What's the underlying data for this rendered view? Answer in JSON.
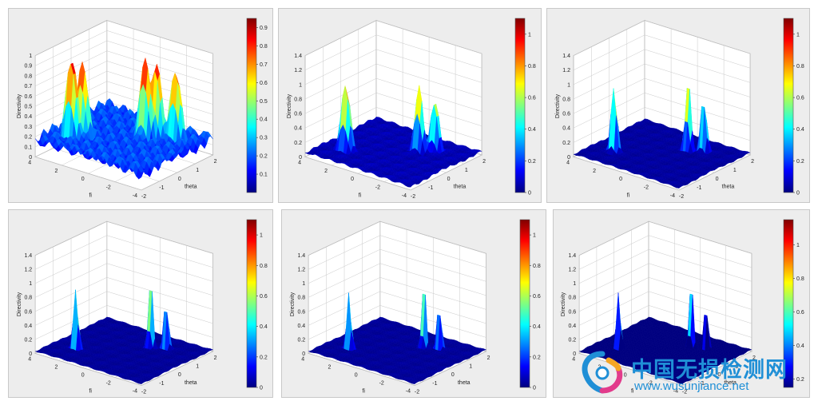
{
  "watermark": {
    "title": "中国无损检测网",
    "url": "www.wusunjiance.net"
  },
  "chart_data": [
    {
      "type": "surface",
      "xlabel": "theta",
      "ylabel": "fi",
      "zlabel": "Directivity",
      "xlim": [
        -2,
        2
      ],
      "ylim": [
        -4,
        4
      ],
      "zlim": [
        0,
        1
      ],
      "xticks": [
        "-2",
        "-1",
        "0",
        "1",
        "2"
      ],
      "yticks": [
        "-4",
        "-2",
        "0",
        "2",
        "4"
      ],
      "zticks": [
        "0",
        "0.1",
        "0.2",
        "0.3",
        "0.4",
        "0.5",
        "0.6",
        "0.7",
        "0.8",
        "0.9",
        "1"
      ],
      "colorbar": {
        "min": 0,
        "max": 0.95,
        "ticks": [
          "0.1",
          "0.2",
          "0.3",
          "0.4",
          "0.5",
          "0.6",
          "0.7",
          "0.8",
          "0.9"
        ]
      },
      "peaks": [
        {
          "theta": -1.0,
          "fi": 2.6,
          "z": 0.95,
          "w": 0.3
        },
        {
          "theta": -0.7,
          "fi": 2.2,
          "z": 0.9,
          "w": 0.3
        },
        {
          "theta": 0.6,
          "fi": -0.8,
          "z": 0.95,
          "w": 0.3
        },
        {
          "theta": 0.9,
          "fi": -1.2,
          "z": 0.9,
          "w": 0.3
        },
        {
          "theta": 1.1,
          "fi": -2.4,
          "z": 0.85,
          "w": 0.3
        }
      ],
      "floor": 0.25
    },
    {
      "type": "surface",
      "xlabel": "theta",
      "ylabel": "fi",
      "zlabel": "Directivity",
      "xlim": [
        -2,
        2
      ],
      "ylim": [
        -4,
        4
      ],
      "zlim": [
        0,
        1.4
      ],
      "xticks": [
        "-2",
        "-1",
        "0",
        "1",
        "2"
      ],
      "yticks": [
        "-4",
        "-2",
        "0",
        "2",
        "4"
      ],
      "zticks": [
        "0",
        "0.2",
        "0.4",
        "0.6",
        "0.8",
        "1",
        "1.2",
        "1.4"
      ],
      "colorbar": {
        "min": 0,
        "max": 1.1,
        "ticks": [
          "0",
          "0.2",
          "0.4",
          "0.6",
          "0.8",
          "1"
        ]
      },
      "peaks": [
        {
          "theta": -0.9,
          "fi": 2.4,
          "z": 1.0,
          "w": 0.22
        },
        {
          "theta": 0.7,
          "fi": -1.0,
          "z": 0.95,
          "w": 0.2
        },
        {
          "theta": 1.0,
          "fi": -1.8,
          "z": 0.8,
          "w": 0.2
        }
      ],
      "floor": 0.08
    },
    {
      "type": "surface",
      "xlabel": "theta",
      "ylabel": "fi",
      "zlabel": "Directivity",
      "xlim": [
        -2,
        2
      ],
      "ylim": [
        -4,
        4
      ],
      "zlim": [
        0,
        1.4
      ],
      "xticks": [
        "-2",
        "-1",
        "0",
        "1",
        "2"
      ],
      "yticks": [
        "-4",
        "-2",
        "0",
        "2",
        "4"
      ],
      "zticks": [
        "0",
        "0.2",
        "0.4",
        "0.6",
        "0.8",
        "1",
        "1.2",
        "1.4"
      ],
      "colorbar": {
        "min": 0,
        "max": 1.1,
        "ticks": [
          "0",
          "0.2",
          "0.4",
          "0.6",
          "0.8",
          "1"
        ]
      },
      "peaks": [
        {
          "theta": -0.9,
          "fi": 2.4,
          "z": 1.05,
          "w": 0.14
        },
        {
          "theta": 0.8,
          "fi": -0.9,
          "z": 1.05,
          "w": 0.14
        },
        {
          "theta": 1.1,
          "fi": -1.7,
          "z": 0.85,
          "w": 0.14
        }
      ],
      "floor": 0.05
    },
    {
      "type": "surface",
      "xlabel": "theta",
      "ylabel": "fi",
      "zlabel": "Directivity",
      "xlim": [
        -2,
        2
      ],
      "ylim": [
        -4,
        4
      ],
      "zlim": [
        0,
        1.4
      ],
      "xticks": [
        "-2",
        "-1",
        "0",
        "1",
        "2"
      ],
      "yticks": [
        "-4",
        "-2",
        "0",
        "2",
        "4"
      ],
      "zticks": [
        "0",
        "0.2",
        "0.4",
        "0.6",
        "0.8",
        "1",
        "1.2",
        "1.4"
      ],
      "colorbar": {
        "min": 0,
        "max": 1.1,
        "ticks": [
          "0",
          "0.2",
          "0.4",
          "0.6",
          "0.8",
          "1"
        ]
      },
      "peaks": [
        {
          "theta": -0.9,
          "fi": 2.4,
          "z": 1.1,
          "w": 0.11
        },
        {
          "theta": 0.8,
          "fi": -0.9,
          "z": 1.1,
          "w": 0.11
        },
        {
          "theta": 1.1,
          "fi": -1.7,
          "z": 0.85,
          "w": 0.11
        }
      ],
      "floor": 0.04
    },
    {
      "type": "surface",
      "xlabel": "theta",
      "ylabel": "fi",
      "zlabel": "Directivity",
      "xlim": [
        -2,
        2
      ],
      "ylim": [
        -4,
        4
      ],
      "zlim": [
        0,
        1.4
      ],
      "xticks": [
        "-2",
        "-1",
        "0",
        "1",
        "2"
      ],
      "yticks": [
        "-4",
        "-2",
        "0",
        "2",
        "4"
      ],
      "zticks": [
        "0",
        "0.2",
        "0.4",
        "0.6",
        "0.8",
        "1",
        "1.2",
        "1.4"
      ],
      "colorbar": {
        "min": 0,
        "max": 1.1,
        "ticks": [
          "0",
          "0.2",
          "0.4",
          "0.6",
          "0.8",
          "1"
        ]
      },
      "peaks": [
        {
          "theta": -0.9,
          "fi": 2.4,
          "z": 1.1,
          "w": 0.1
        },
        {
          "theta": 0.8,
          "fi": -0.9,
          "z": 1.1,
          "w": 0.1
        },
        {
          "theta": 1.1,
          "fi": -1.7,
          "z": 0.85,
          "w": 0.1
        }
      ],
      "floor": 0.04
    },
    {
      "type": "surface",
      "xlabel": "theta",
      "ylabel": "fi",
      "zlabel": "Directivity",
      "xlim": [
        -2,
        2
      ],
      "ylim": [
        -4,
        4
      ],
      "zlim": [
        0,
        1.4
      ],
      "xticks": [
        "-2",
        "-1",
        "0",
        "1",
        "2"
      ],
      "yticks": [
        "-4",
        "-2",
        "0",
        "2",
        "4"
      ],
      "zticks": [
        "0",
        "0.2",
        "0.4",
        "0.6",
        "0.8",
        "1",
        "1.2",
        "1.4"
      ],
      "colorbar": {
        "min": 0.15,
        "max": 1.15,
        "ticks": [
          "0.2",
          "0.4",
          "0.6",
          "0.8",
          "1"
        ]
      },
      "peaks": [
        {
          "theta": -0.9,
          "fi": 2.4,
          "z": 1.1,
          "w": 0.1
        },
        {
          "theta": 0.8,
          "fi": -0.9,
          "z": 1.1,
          "w": 0.1
        },
        {
          "theta": 1.1,
          "fi": -1.7,
          "z": 0.85,
          "w": 0.1
        }
      ],
      "floor": 0.04
    }
  ]
}
